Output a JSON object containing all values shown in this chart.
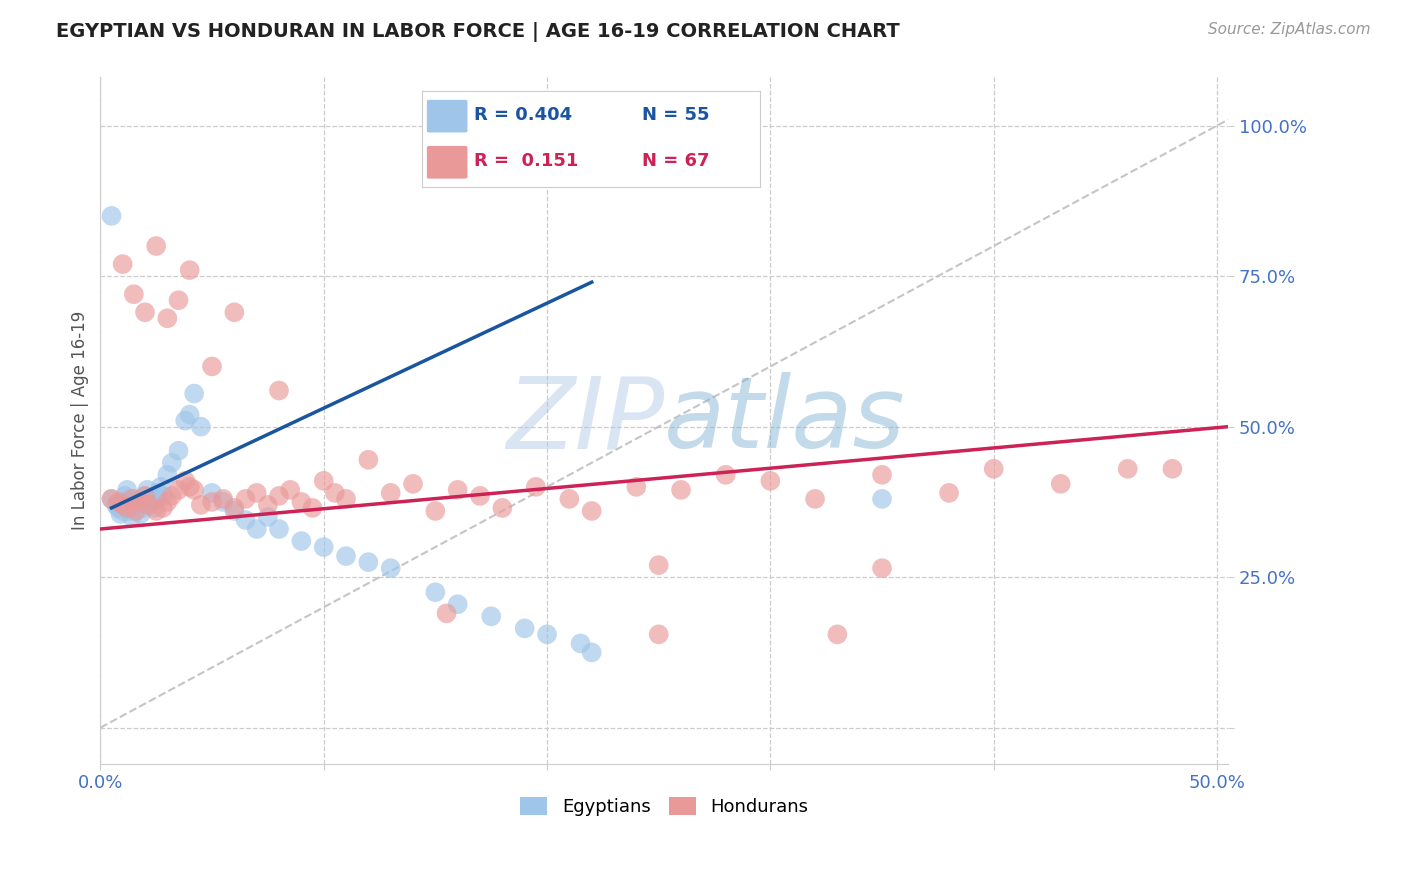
{
  "title": "EGYPTIAN VS HONDURAN IN LABOR FORCE | AGE 16-19 CORRELATION CHART",
  "source_text": "Source: ZipAtlas.com",
  "ylabel": "In Labor Force | Age 16-19",
  "xlim": [
    0.0,
    0.505
  ],
  "ylim": [
    -0.06,
    1.08
  ],
  "blue_color": "#9fc5e8",
  "pink_color": "#ea9999",
  "blue_line_color": "#1a55a0",
  "pink_line_color": "#cc2255",
  "ref_line_color": "#bbbbbb",
  "legend_R_blue": "R = 0.404",
  "legend_N_blue": "N = 55",
  "legend_R_pink": "R =  0.151",
  "legend_N_pink": "N = 67",
  "grid_color": "#cccccc",
  "background_color": "#ffffff",
  "title_color": "#222222",
  "axis_label_color": "#555555",
  "tick_color": "#4472c4",
  "blue_scatter_x": [
    0.005,
    0.007,
    0.008,
    0.009,
    0.01,
    0.01,
    0.011,
    0.012,
    0.012,
    0.013,
    0.014,
    0.015,
    0.015,
    0.016,
    0.017,
    0.018,
    0.019,
    0.02,
    0.02,
    0.021,
    0.022,
    0.023,
    0.024,
    0.025,
    0.026,
    0.027,
    0.028,
    0.03,
    0.032,
    0.035,
    0.038,
    0.04,
    0.042,
    0.045,
    0.05,
    0.055,
    0.06,
    0.065,
    0.07,
    0.075,
    0.08,
    0.09,
    0.1,
    0.11,
    0.12,
    0.13,
    0.15,
    0.16,
    0.175,
    0.19,
    0.2,
    0.215,
    0.22,
    0.35,
    0.005
  ],
  "blue_scatter_y": [
    0.38,
    0.37,
    0.365,
    0.355,
    0.36,
    0.375,
    0.385,
    0.395,
    0.37,
    0.36,
    0.35,
    0.365,
    0.38,
    0.375,
    0.37,
    0.355,
    0.365,
    0.37,
    0.385,
    0.395,
    0.38,
    0.375,
    0.365,
    0.38,
    0.39,
    0.4,
    0.385,
    0.42,
    0.44,
    0.46,
    0.51,
    0.52,
    0.555,
    0.5,
    0.39,
    0.375,
    0.36,
    0.345,
    0.33,
    0.35,
    0.33,
    0.31,
    0.3,
    0.285,
    0.275,
    0.265,
    0.225,
    0.205,
    0.185,
    0.165,
    0.155,
    0.14,
    0.125,
    0.38,
    0.85
  ],
  "pink_scatter_x": [
    0.005,
    0.008,
    0.01,
    0.012,
    0.014,
    0.016,
    0.018,
    0.02,
    0.022,
    0.025,
    0.028,
    0.03,
    0.032,
    0.035,
    0.038,
    0.04,
    0.042,
    0.045,
    0.05,
    0.055,
    0.06,
    0.065,
    0.07,
    0.075,
    0.08,
    0.085,
    0.09,
    0.095,
    0.1,
    0.105,
    0.11,
    0.12,
    0.13,
    0.14,
    0.15,
    0.16,
    0.17,
    0.18,
    0.195,
    0.21,
    0.22,
    0.24,
    0.26,
    0.28,
    0.3,
    0.32,
    0.35,
    0.38,
    0.4,
    0.43,
    0.46,
    0.48,
    0.01,
    0.015,
    0.02,
    0.025,
    0.03,
    0.035,
    0.04,
    0.05,
    0.06,
    0.08,
    0.25,
    0.35,
    0.155,
    0.33,
    0.25
  ],
  "pink_scatter_y": [
    0.38,
    0.375,
    0.37,
    0.365,
    0.38,
    0.36,
    0.375,
    0.385,
    0.37,
    0.36,
    0.365,
    0.375,
    0.385,
    0.395,
    0.41,
    0.4,
    0.395,
    0.37,
    0.375,
    0.38,
    0.365,
    0.38,
    0.39,
    0.37,
    0.385,
    0.395,
    0.375,
    0.365,
    0.41,
    0.39,
    0.38,
    0.445,
    0.39,
    0.405,
    0.36,
    0.395,
    0.385,
    0.365,
    0.4,
    0.38,
    0.36,
    0.4,
    0.395,
    0.42,
    0.41,
    0.38,
    0.42,
    0.39,
    0.43,
    0.405,
    0.43,
    0.43,
    0.77,
    0.72,
    0.69,
    0.8,
    0.68,
    0.71,
    0.76,
    0.6,
    0.69,
    0.56,
    0.27,
    0.265,
    0.19,
    0.155,
    0.155
  ],
  "blue_line_x": [
    0.005,
    0.22
  ],
  "blue_line_y": [
    0.365,
    0.74
  ],
  "pink_line_x": [
    0.0,
    0.505
  ],
  "pink_line_y": [
    0.33,
    0.5
  ],
  "ref_line_x": [
    0.0,
    0.505
  ],
  "ref_line_y": [
    0.0,
    1.01
  ]
}
